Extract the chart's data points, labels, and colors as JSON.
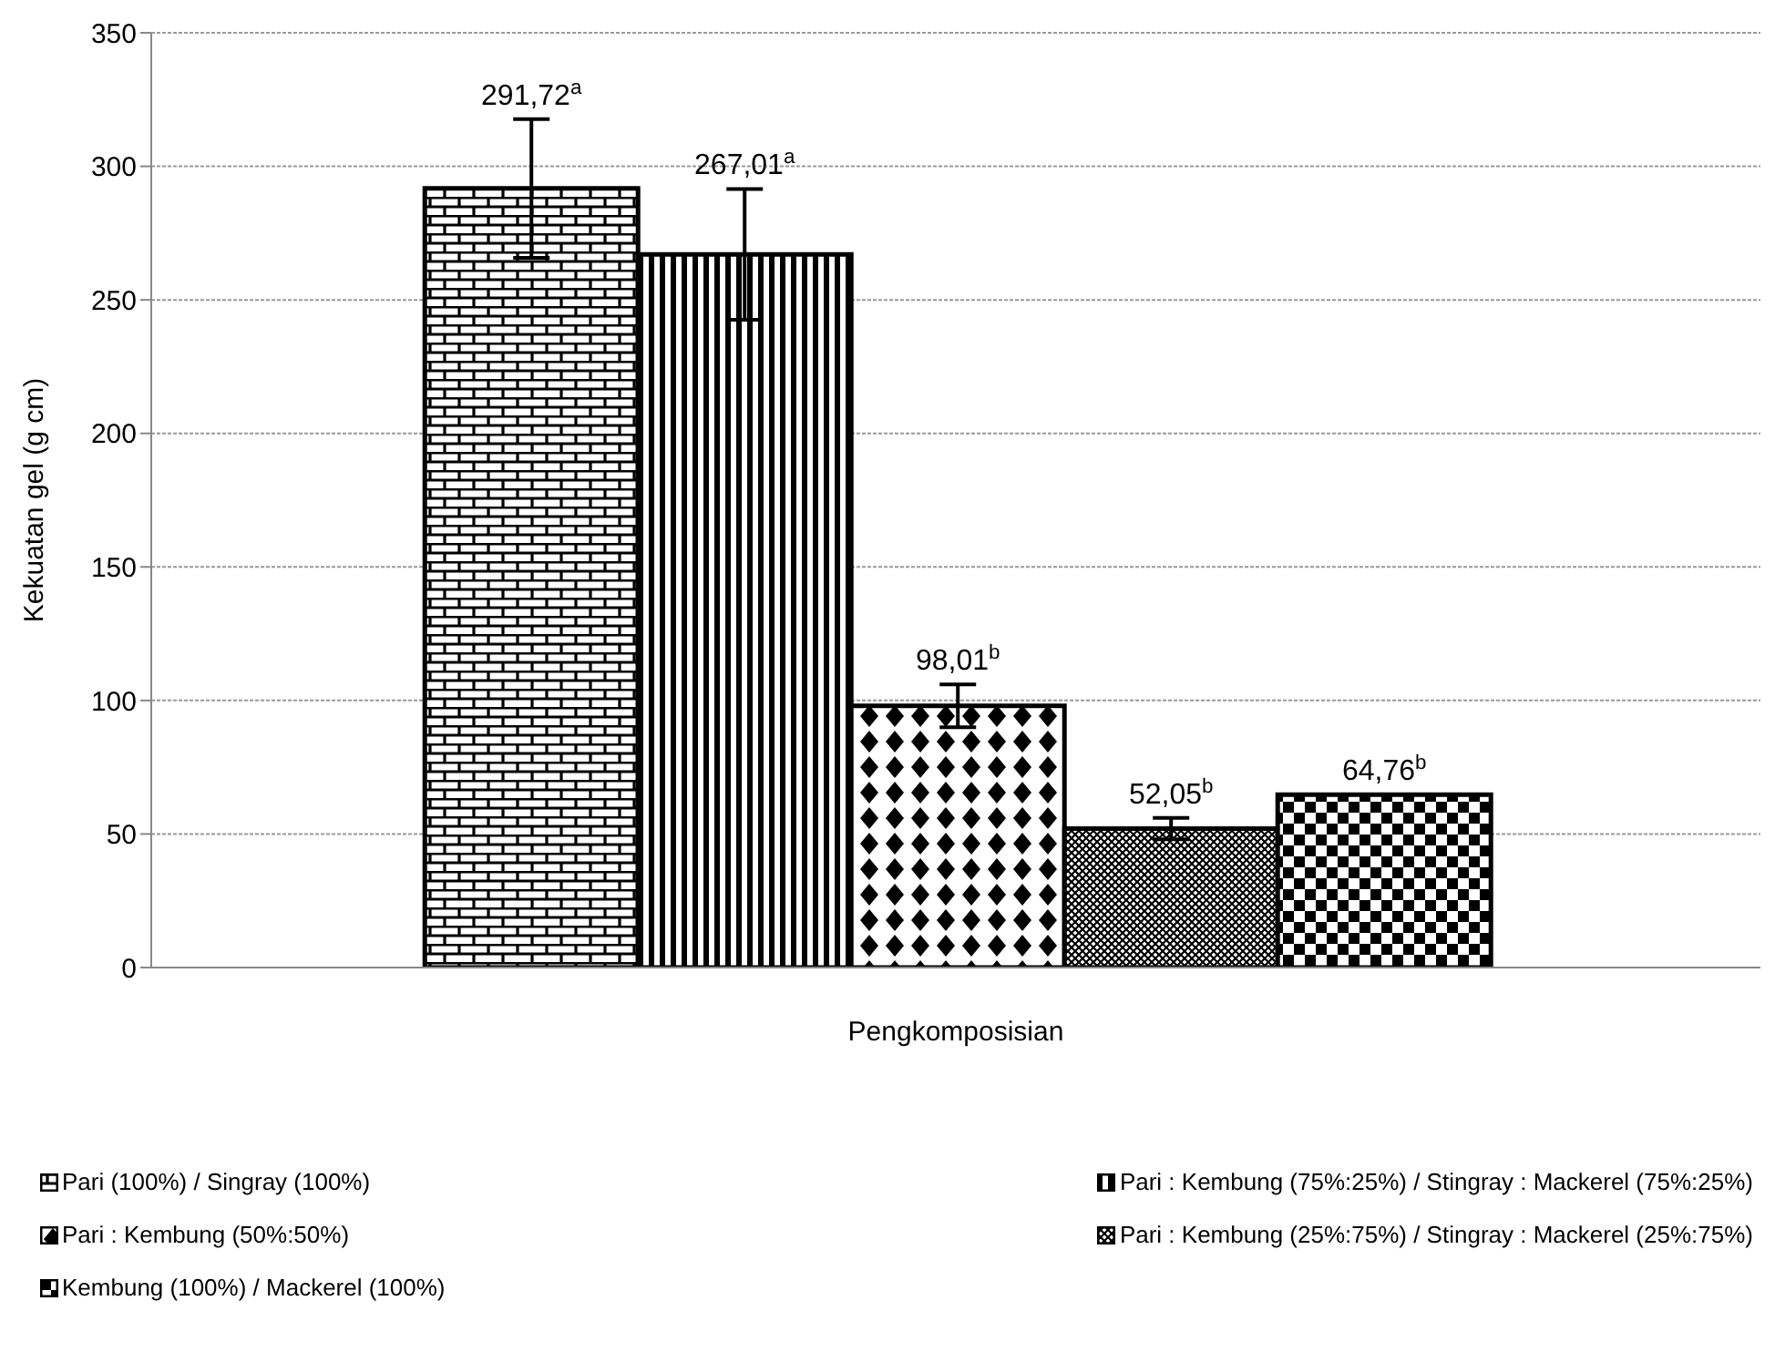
{
  "chart_data": {
    "type": "bar",
    "xlabel": "Pengkomposisian",
    "ylabel": "Kekuatan gel (g cm)",
    "categories": [
      null
    ],
    "series": [
      {
        "name": "Pari (100%) / Singray (100%)",
        "color": "#000000",
        "values": [
          291.72
        ],
        "errors": [
          26
        ],
        "value_labels": [
          "291,72$^{a}$"
        ]
      },
      {
        "name": "Pari : Kembung (75%:25%) / Stingray : Mackerel (75%:25%)",
        "color": "#000000",
        "values": [
          267.01
        ],
        "errors": [
          24.5
        ],
        "value_labels": [
          "267,01$^{a}$"
        ]
      },
      {
        "name": "Pari : Kembung (50%:50%)",
        "color": "#000000",
        "values": [
          98.01
        ],
        "errors": [
          8
        ],
        "value_labels": [
          "98,01$^{b}$"
        ]
      },
      {
        "name": "Pari : Kembung (25%:75%) / Stingray : Mackerel (25%:75%)",
        "color": "#000000",
        "values": [
          52.05
        ],
        "errors": [
          4
        ],
        "value_labels": [
          "52,05$^{b}$"
        ]
      },
      {
        "name": "Kembung (100%) / Mackerel (100%)",
        "color": "#000000",
        "values": [
          64.76
        ],
        "errors": [
          null
        ],
        "value_labels": [
          "64,76$^{b}$"
        ]
      }
    ],
    "ylim": [
      0,
      350
    ],
    "yticks": [
      0,
      50,
      100,
      150,
      200,
      250,
      300,
      350
    ],
    "grid": "y",
    "legend": "bottom"
  }
}
